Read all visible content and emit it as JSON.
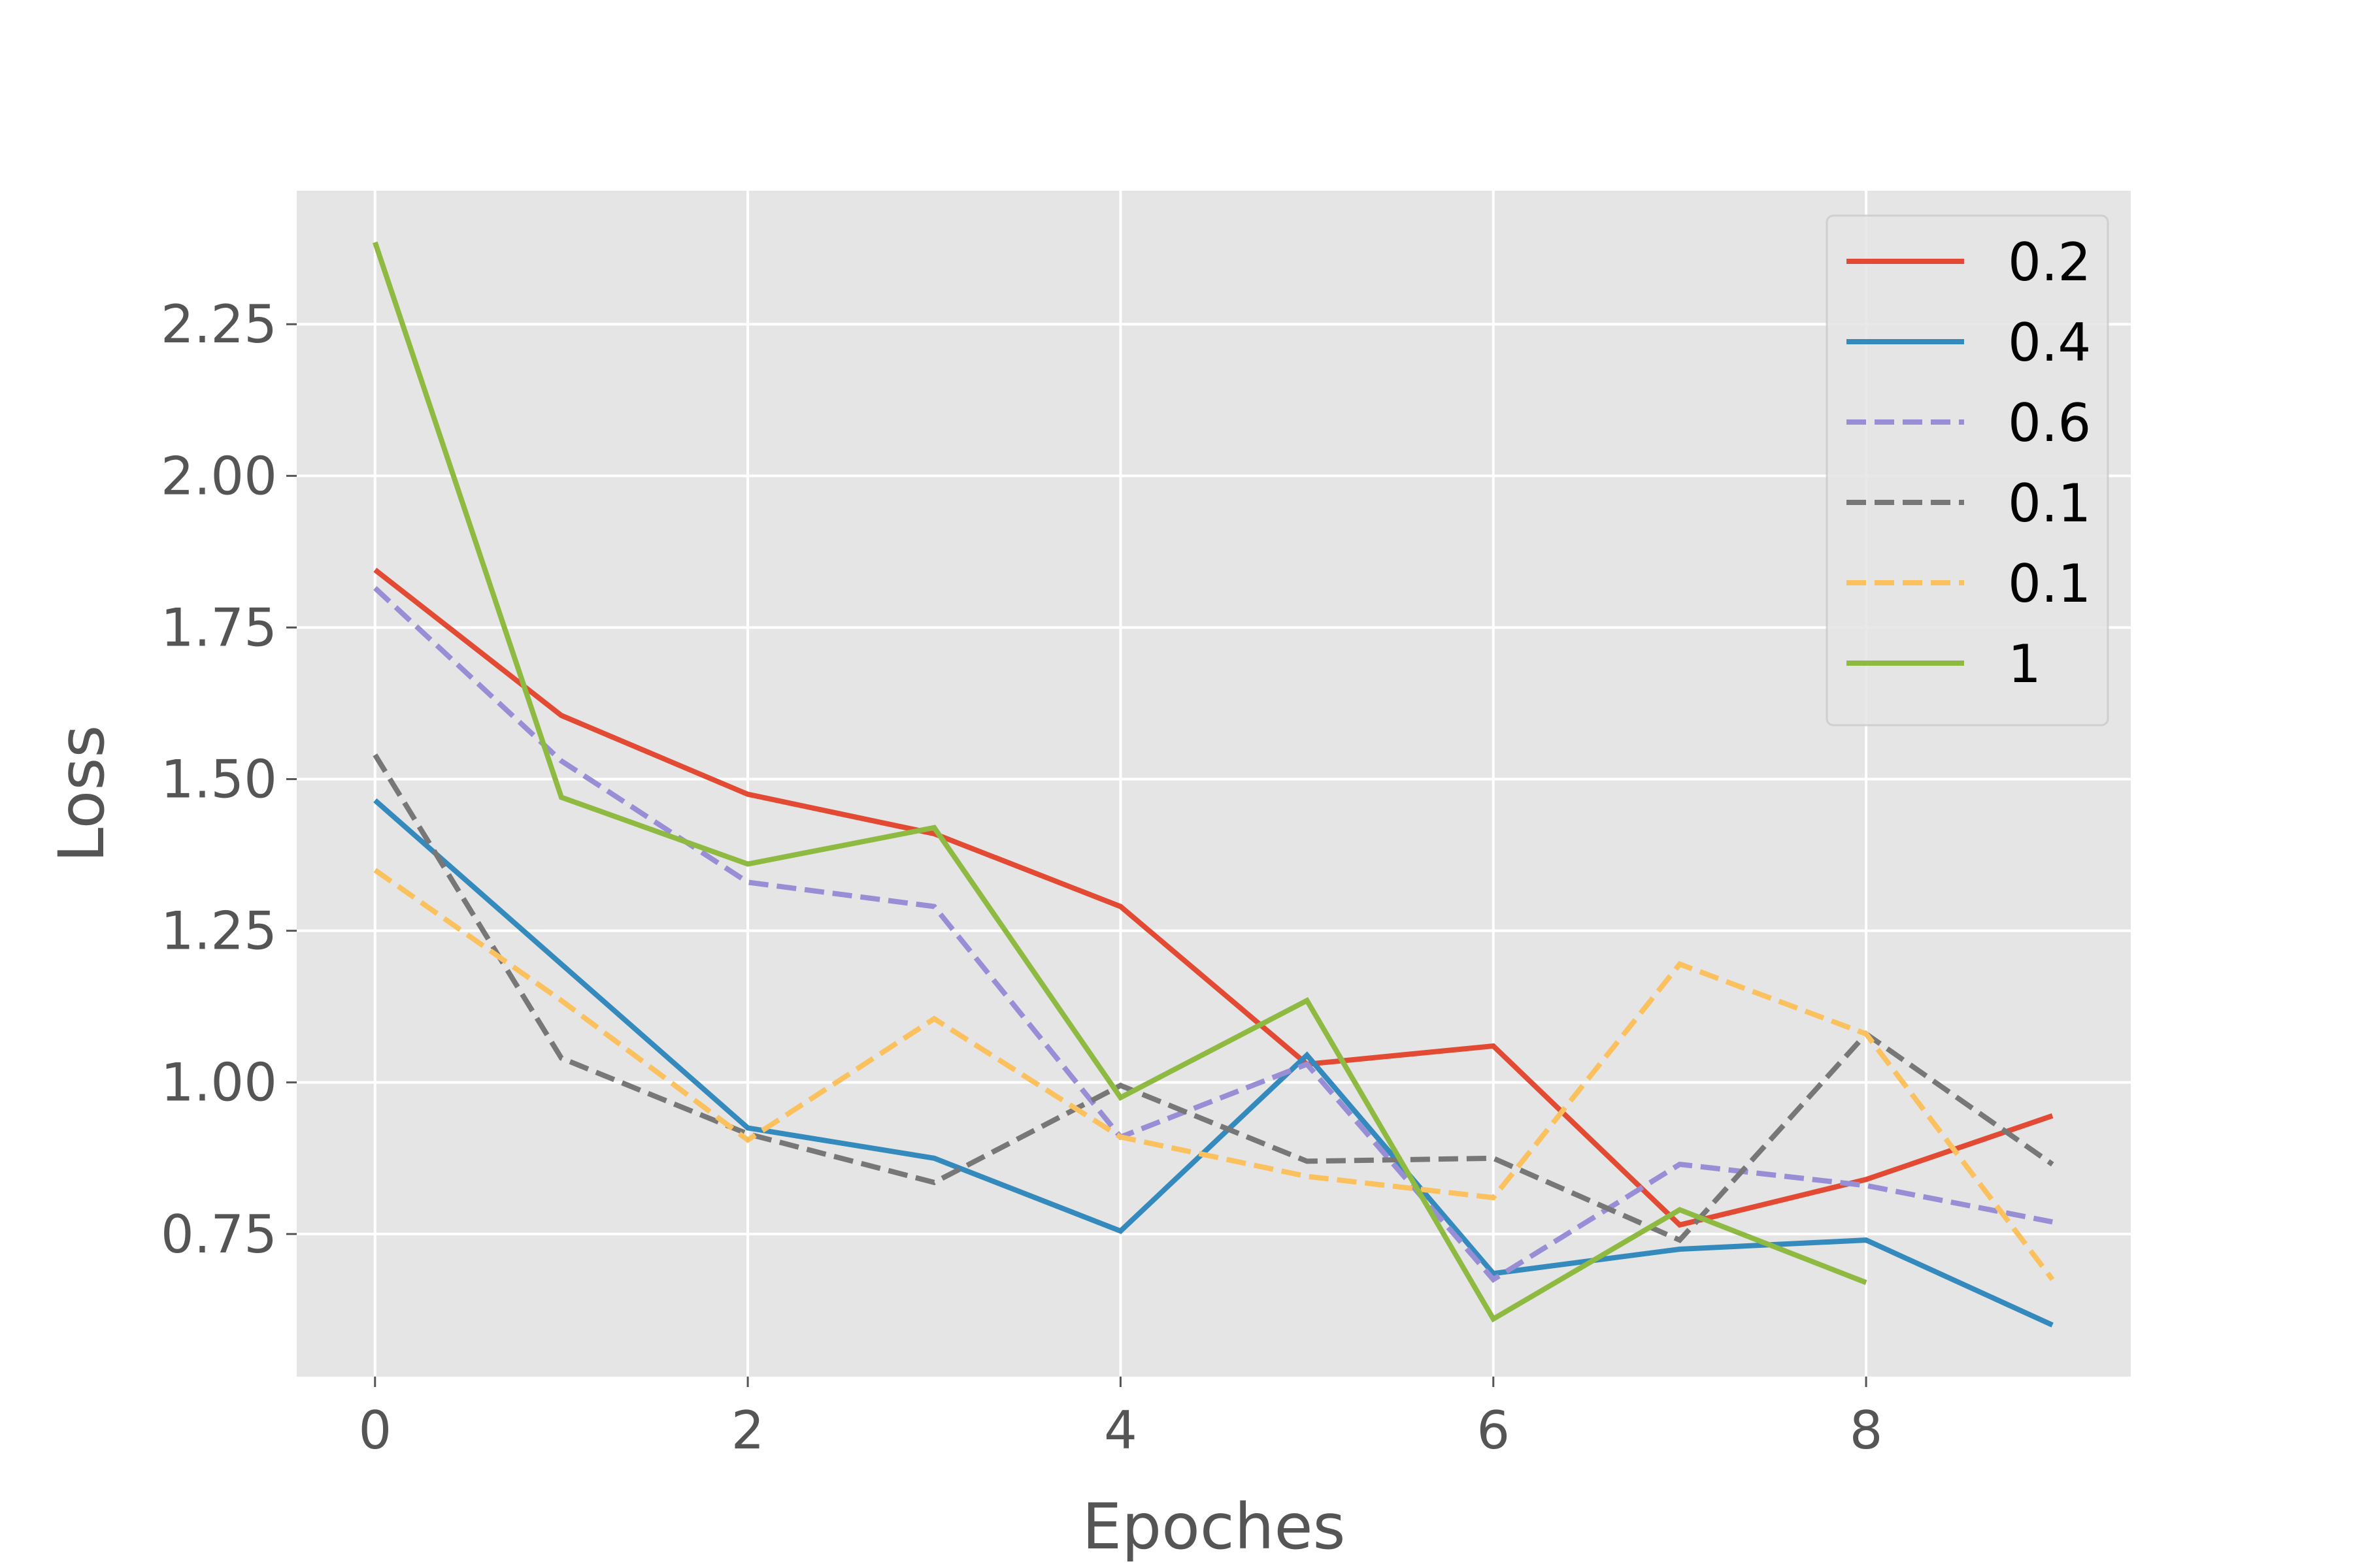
{
  "chart_data": {
    "type": "line",
    "xlabel": "Epoches",
    "ylabel": "Loss",
    "xlim": [
      -0.42,
      9.42
    ],
    "ylim": [
      0.515,
      2.47
    ],
    "xticks": [
      0,
      2,
      4,
      6,
      8
    ],
    "xtick_labels": [
      "0",
      "2",
      "4",
      "6",
      "8"
    ],
    "yticks": [
      0.75,
      1.0,
      1.25,
      1.5,
      1.75,
      2.0,
      2.25
    ],
    "ytick_labels": [
      "0.75",
      "1.00",
      "1.25",
      "1.50",
      "1.75",
      "2.00",
      "2.25"
    ],
    "grid": true,
    "background": "#e5e5e5",
    "legend_position": "upper right",
    "series": [
      {
        "name": "0.2",
        "color": "#E24A33",
        "dash": "solid",
        "x": [
          0,
          1,
          2,
          3,
          4,
          5,
          6,
          7,
          8,
          9
        ],
        "y": [
          1.845,
          1.605,
          1.475,
          1.41,
          1.29,
          1.03,
          1.06,
          0.765,
          0.84,
          0.945
        ]
      },
      {
        "name": "0.4",
        "color": "#348ABD",
        "dash": "solid",
        "x": [
          0,
          1,
          2,
          3,
          4,
          5,
          6,
          7,
          8,
          9
        ],
        "y": [
          1.465,
          1.195,
          0.925,
          0.875,
          0.755,
          1.045,
          0.685,
          0.725,
          0.74,
          0.6
        ]
      },
      {
        "name": "0.6",
        "color": "#988ED5",
        "dash": "dashed",
        "x": [
          0,
          1,
          2,
          3,
          4,
          5,
          6,
          7,
          8,
          9
        ],
        "y": [
          1.815,
          1.53,
          1.33,
          1.29,
          0.91,
          1.03,
          0.675,
          0.865,
          0.83,
          0.77
        ]
      },
      {
        "name": "0.1",
        "color": "#777777",
        "dash": "dashed",
        "x": [
          0,
          1,
          2,
          3,
          4,
          5,
          6,
          7,
          8,
          9
        ],
        "y": [
          1.54,
          1.04,
          0.915,
          0.835,
          0.995,
          0.87,
          0.875,
          0.74,
          1.08,
          0.865
        ]
      },
      {
        "name": "0.1",
        "color": "#FBC15E",
        "dash": "dashed",
        "x": [
          0,
          1,
          2,
          3,
          4,
          5,
          6,
          7,
          8,
          9
        ],
        "y": [
          1.35,
          1.135,
          0.905,
          1.105,
          0.91,
          0.845,
          0.81,
          1.195,
          1.08,
          0.675
        ]
      },
      {
        "name": "1",
        "color": "#8EBA42",
        "dash": "solid",
        "x": [
          0,
          1,
          2,
          3,
          4,
          5,
          6,
          7,
          8
        ],
        "y": [
          2.385,
          1.47,
          1.36,
          1.42,
          0.975,
          1.135,
          0.61,
          0.79,
          0.67
        ]
      }
    ]
  }
}
